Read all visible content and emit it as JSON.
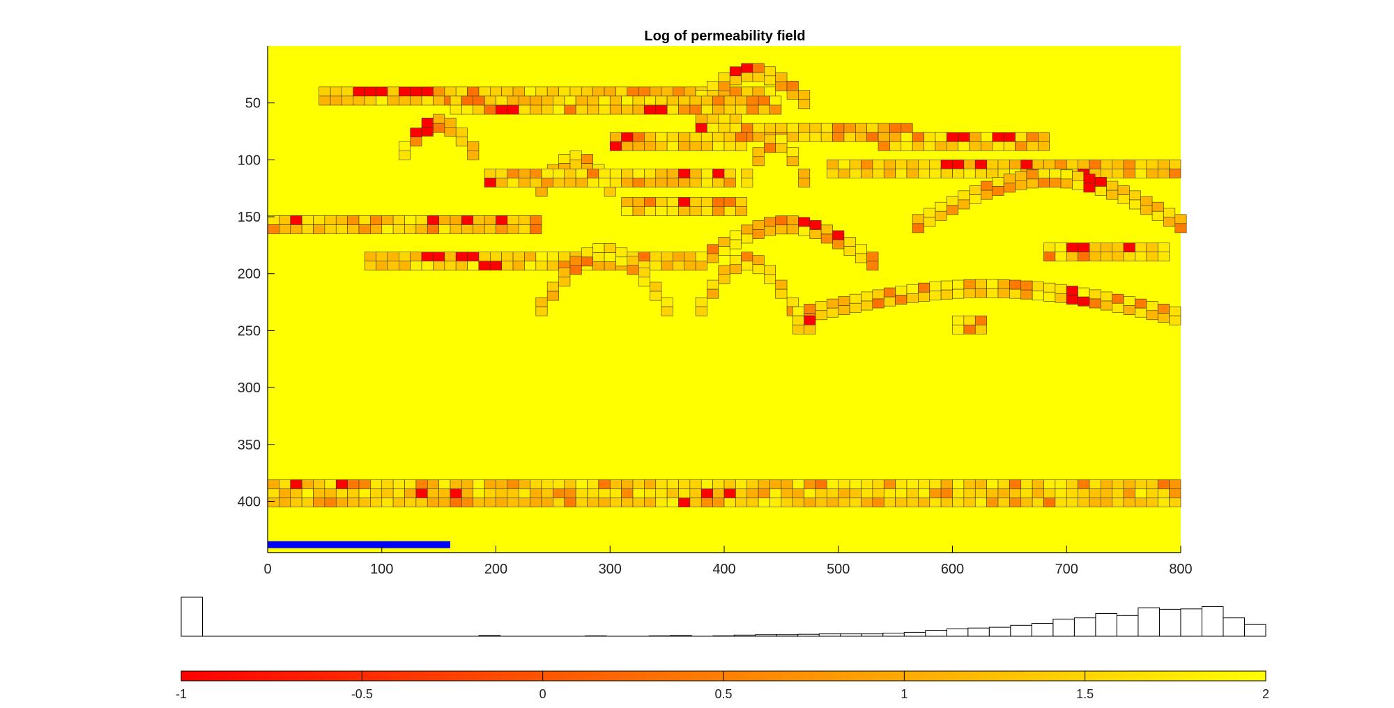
{
  "chart_data": [
    {
      "type": "heatmap",
      "title": "Log of permeability field",
      "xlim": [
        0,
        800
      ],
      "ylim": [
        0,
        445
      ],
      "y_reversed": true,
      "xticks": [
        0,
        100,
        200,
        300,
        400,
        500,
        600,
        700,
        800
      ],
      "yticks": [
        50,
        100,
        150,
        200,
        250,
        300,
        350,
        400
      ],
      "background_value": 2,
      "grid_cells": {
        "dx": 10,
        "dy": 8
      },
      "segments": [
        {
          "x": [
            45,
            445
          ],
          "y": [
            36,
            52
          ],
          "low": [
            [
              85,
              36,
              -1
            ],
            [
              95,
              36,
              -1
            ],
            [
              125,
              36,
              -1
            ],
            [
              135,
              36,
              -1
            ],
            [
              165,
              44,
              0.4
            ],
            [
              235,
              44,
              -1
            ],
            [
              325,
              36,
              0.5
            ]
          ]
        },
        {
          "x": [
            375,
            475
          ],
          "y": [
            15,
            39
          ],
          "arc": true,
          "low": [
            [
              385,
              15,
              -1
            ],
            [
              415,
              15,
              -1
            ],
            [
              365,
              23,
              -1
            ],
            [
              475,
              31,
              -1
            ]
          ]
        },
        {
          "x": [
            160,
            445
          ],
          "y": [
            44,
            60
          ],
          "low": [
            [
              205,
              52,
              -1
            ],
            [
              215,
              52,
              -1
            ],
            [
              335,
              52,
              -1
            ],
            [
              345,
              52,
              -1
            ],
            [
              180,
              44,
              0.3
            ]
          ]
        },
        {
          "x": [
            115,
            180
          ],
          "y": [
            60,
            84
          ],
          "arc": true,
          "low": [
            [
              135,
              68,
              -1
            ]
          ]
        },
        {
          "x": [
            375,
            415
          ],
          "y": [
            60,
            92
          ],
          "low": [
            [
              365,
              60,
              -1
            ],
            [
              375,
              68,
              -1
            ],
            [
              385,
              76,
              -1
            ],
            [
              405,
              84,
              -1
            ]
          ]
        },
        {
          "x": [
            415,
            565
          ],
          "y": [
            68,
            76
          ]
        },
        {
          "x": [
            535,
            680
          ],
          "y": [
            76,
            84
          ],
          "low": [
            [
              605,
              76,
              -1
            ],
            [
              645,
              76,
              -1
            ]
          ]
        },
        {
          "x": [
            300,
            415
          ],
          "y": [
            76,
            92
          ],
          "low": [
            [
              315,
              76,
              -1
            ],
            [
              305,
              84,
              -1
            ],
            [
              295,
              92,
              -1
            ]
          ]
        },
        {
          "x": [
            235,
            300
          ],
          "y": [
            92,
            116
          ],
          "arc": true
        },
        {
          "x": [
            415,
            470
          ],
          "y": [
            76,
            108
          ],
          "arc": true
        },
        {
          "x": [
            490,
            800
          ],
          "y": [
            100,
            108
          ],
          "low": [
            [
              595,
              100,
              -1
            ],
            [
              605,
              100,
              -1
            ],
            [
              625,
              100,
              -1
            ],
            [
              665,
              100,
              -1
            ],
            [
              715,
              108,
              -1
            ]
          ]
        },
        {
          "x": [
            190,
            405
          ],
          "y": [
            108,
            124
          ],
          "low": [
            [
              365,
              108,
              -1
            ],
            [
              395,
              108,
              -1
            ],
            [
              195,
              116,
              -1
            ]
          ]
        },
        {
          "x": [
            565,
            800
          ],
          "y": [
            108,
            148
          ],
          "arc": true,
          "low": [
            [
              725,
              116,
              -1
            ]
          ]
        },
        {
          "x": [
            310,
            415
          ],
          "y": [
            133,
            141
          ],
          "low": [
            [
              365,
              133,
              -1
            ]
          ]
        },
        {
          "x": [
            0,
            235
          ],
          "y": [
            149,
            157
          ],
          "low": [
            [
              25,
              149,
              -1
            ],
            [
              145,
              149,
              -1
            ],
            [
              175,
              149,
              -1
            ],
            [
              205,
              149,
              -1
            ]
          ]
        },
        {
          "x": [
            375,
            530
          ],
          "y": [
            149,
            181
          ],
          "arc": true,
          "low": [
            [
              475,
              149,
              -1
            ],
            [
              505,
              157,
              -1
            ]
          ]
        },
        {
          "x": [
            680,
            790
          ],
          "y": [
            173,
            181
          ],
          "low": [
            [
              705,
              173,
              -1
            ],
            [
              715,
              173,
              -1
            ],
            [
              755,
              173,
              -1
            ]
          ]
        },
        {
          "x": [
            85,
            375
          ],
          "y": [
            181,
            197
          ],
          "low": [
            [
              145,
              181,
              -1
            ],
            [
              175,
              181,
              -1
            ],
            [
              195,
              189,
              -1
            ]
          ]
        },
        {
          "x": [
            235,
            350
          ],
          "y": [
            173,
            221
          ],
          "arc": true,
          "low": [
            [
              335,
              173,
              -1
            ]
          ]
        },
        {
          "x": [
            375,
            460
          ],
          "y": [
            181,
            221
          ],
          "arc": true
        },
        {
          "x": [
            460,
            800
          ],
          "y": [
            205,
            229
          ],
          "arc": true,
          "low": [
            [
              595,
              229,
              -1
            ],
            [
              795,
              221,
              -1
            ],
            [
              705,
              213,
              -1
            ],
            [
              715,
              221,
              -1
            ]
          ]
        },
        {
          "x": [
            460,
            480
          ],
          "y": [
            237,
            253
          ],
          "low": [
            [
              475,
              237,
              -1
            ]
          ]
        },
        {
          "x": [
            600,
            625
          ],
          "y": [
            237,
            253
          ]
        },
        {
          "x": [
            0,
            800
          ],
          "y": [
            381,
            405
          ],
          "low": [
            [
              25,
              381,
              -1
            ],
            [
              65,
              381,
              -1
            ],
            [
              135,
              389,
              -1
            ],
            [
              165,
              389,
              -1
            ],
            [
              365,
              397,
              -1
            ],
            [
              385,
              389,
              -1
            ],
            [
              405,
              389,
              -1
            ]
          ]
        }
      ],
      "marker_bar": {
        "x": [
          0,
          160
        ],
        "y": 438,
        "color": "#0000ff"
      }
    },
    {
      "type": "bar",
      "role": "histogram",
      "bin_edges_range": [
        -1,
        2
      ],
      "bins": 51,
      "values": [
        1.0,
        0,
        0,
        0,
        0,
        0,
        0,
        0,
        0,
        0,
        0,
        0,
        0,
        0,
        0.02,
        0,
        0,
        0,
        0,
        0.01,
        0,
        0,
        0.01,
        0.02,
        0,
        0.01,
        0.03,
        0.04,
        0.04,
        0.05,
        0.06,
        0.06,
        0.06,
        0.08,
        0.1,
        0.15,
        0.19,
        0.21,
        0.23,
        0.28,
        0.33,
        0.44,
        0.47,
        0.58,
        0.53,
        0.73,
        0.69,
        0.7,
        0.76,
        0.47,
        0.3
      ]
    },
    {
      "type": "colorbar",
      "ticks": [
        -1,
        -0.5,
        0,
        0.5,
        1,
        1.5,
        2
      ],
      "tick_labels": [
        "-1",
        "-0.5",
        "0",
        "0.5",
        "1",
        "1.5",
        "2"
      ],
      "range": [
        -1,
        2
      ],
      "colormap": [
        "#ff0000",
        "#ffff00"
      ]
    }
  ]
}
